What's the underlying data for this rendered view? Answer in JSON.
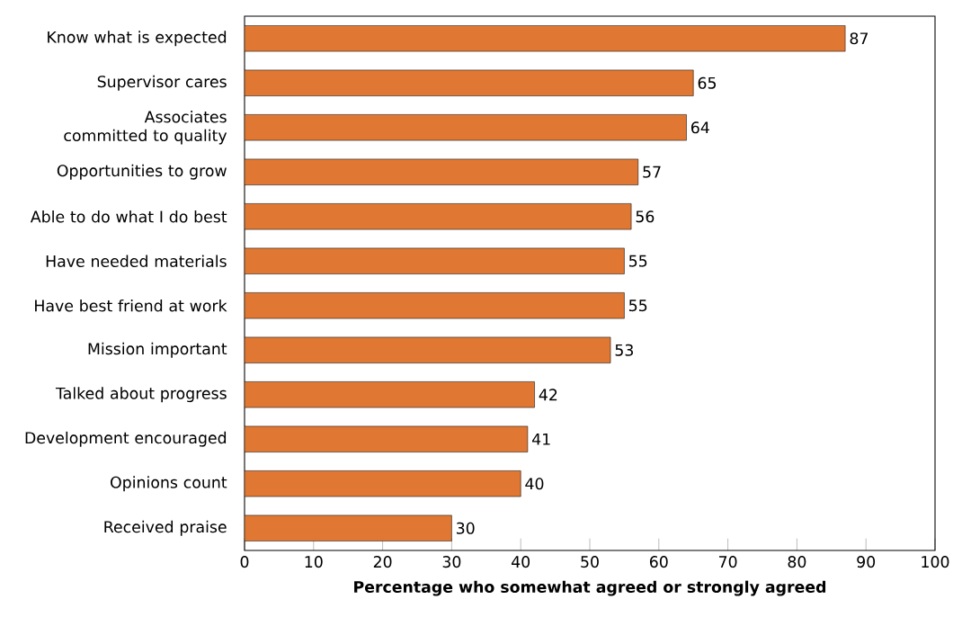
{
  "chart_data": {
    "type": "bar",
    "orientation": "horizontal",
    "xlabel": "Percentage who somewhat agreed or strongly agreed",
    "categories": [
      "Know what is expected",
      "Supervisor cares",
      "Associates committed to quality",
      "Opportunities to grow",
      "Able to do what I do best",
      "Have needed materials",
      "Have best friend at work",
      "Mission important",
      "Talked about progress",
      "Development encouraged",
      "Opinions count",
      "Received praise"
    ],
    "values": [
      87,
      65,
      64,
      57,
      56,
      55,
      55,
      53,
      42,
      41,
      40,
      30
    ],
    "color": "#e07833",
    "data_labels": true,
    "xlim": [
      0,
      100
    ],
    "xticks": [
      0,
      10,
      20,
      30,
      40,
      50,
      60,
      70,
      80,
      90,
      100
    ]
  }
}
